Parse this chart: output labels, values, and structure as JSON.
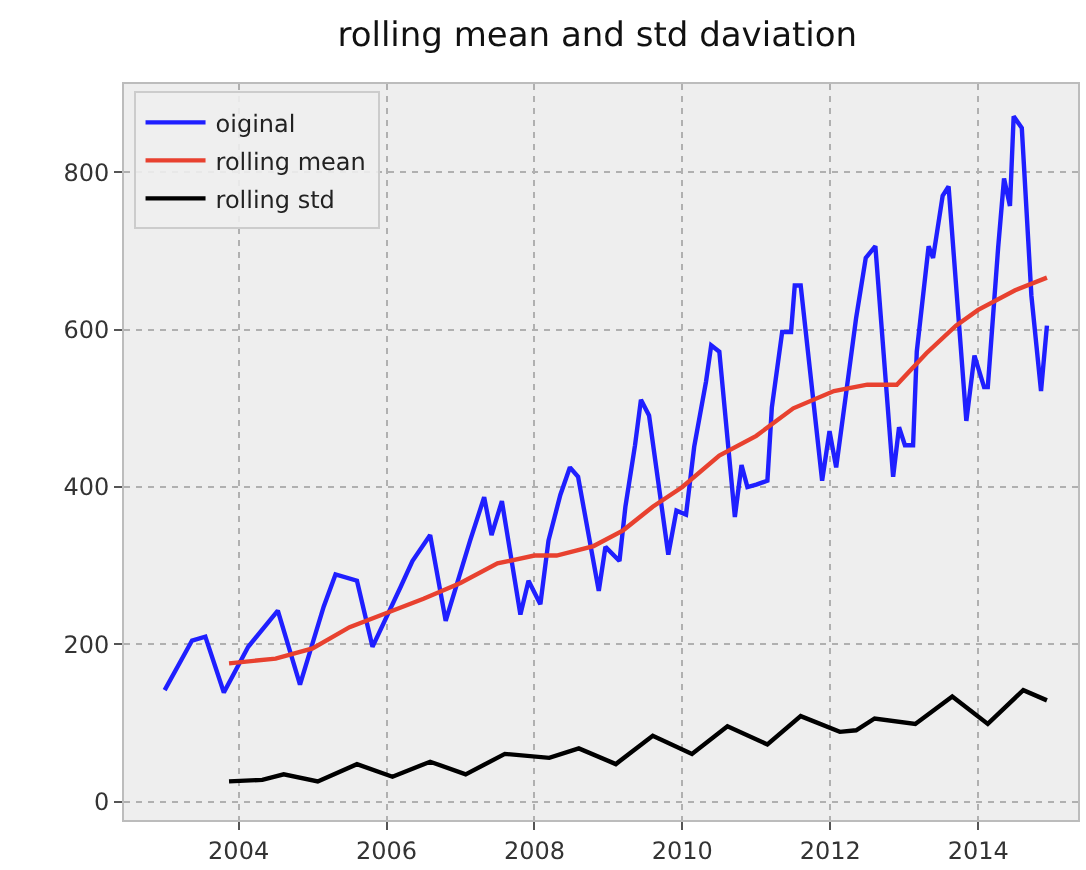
{
  "chart_data": {
    "type": "line",
    "title": "rolling mean and std daviation",
    "xlim": [
      2002.45,
      2015.35
    ],
    "xticks": [
      2004,
      2006,
      2008,
      2010,
      2012,
      2014
    ],
    "ylim": [
      -23,
      912
    ],
    "yticks": [
      0,
      200,
      400,
      600,
      800
    ],
    "grid": true,
    "legend": "top left",
    "marker": "none",
    "line_style": "solid",
    "series": [
      {
        "name": "oiginal",
        "color": "#1f1fff",
        "x": [
          2003.0,
          2003.37,
          2003.55,
          2003.8,
          2004.13,
          2004.53,
          2004.83,
          2005.15,
          2005.31,
          2005.6,
          2005.81,
          2006.19,
          2006.35,
          2006.59,
          2006.8,
          2007.13,
          2007.32,
          2007.42,
          2007.56,
          2007.81,
          2007.92,
          2008.08,
          2008.19,
          2008.35,
          2008.48,
          2008.59,
          2008.87,
          2008.96,
          2009.15,
          2009.23,
          2009.36,
          2009.44,
          2009.55,
          2009.81,
          2009.92,
          2010.05,
          2010.16,
          2010.32,
          2010.39,
          2010.5,
          2010.71,
          2010.8,
          2010.88,
          2011.0,
          2011.15,
          2011.21,
          2011.35,
          2011.47,
          2011.52,
          2011.6,
          2011.89,
          2011.99,
          2012.08,
          2012.21,
          2012.35,
          2012.48,
          2012.61,
          2012.85,
          2012.93,
          2013.01,
          2013.12,
          2013.17,
          2013.33,
          2013.39,
          2013.52,
          2013.6,
          2013.84,
          2013.95,
          2014.08,
          2014.13,
          2014.27,
          2014.35,
          2014.43,
          2014.48,
          2014.59,
          2014.72,
          2014.85,
          2014.93
        ],
        "values": [
          142,
          205,
          210,
          139,
          197,
          243,
          149,
          248,
          289,
          281,
          197,
          273,
          306,
          339,
          230,
          332,
          387,
          339,
          382,
          238,
          281,
          251,
          332,
          390,
          425,
          413,
          268,
          324,
          306,
          375,
          453,
          511,
          491,
          314,
          370,
          365,
          451,
          534,
          580,
          572,
          362,
          428,
          400,
          403,
          408,
          501,
          597,
          597,
          656,
          656,
          408,
          471,
          425,
          516,
          615,
          691,
          706,
          413,
          476,
          453,
          453,
          572,
          706,
          691,
          770,
          782,
          484,
          567,
          527,
          527,
          704,
          792,
          757,
          871,
          856,
          643,
          522,
          605
        ]
      },
      {
        "name": "rolling mean",
        "color": "#e8412f",
        "x": [
          2003.87,
          2004.5,
          2005.0,
          2005.5,
          2006.0,
          2006.5,
          2007.0,
          2007.5,
          2008.0,
          2008.3,
          2008.8,
          2009.2,
          2009.6,
          2010.0,
          2010.5,
          2011.0,
          2011.5,
          2012.05,
          2012.5,
          2012.9,
          2013.3,
          2013.7,
          2014.0,
          2014.5,
          2014.93
        ],
        "values": [
          176,
          182,
          195,
          222,
          240,
          258,
          278,
          303,
          313,
          313,
          325,
          345,
          375,
          400,
          440,
          465,
          500,
          522,
          530,
          530,
          570,
          605,
          625,
          650,
          666
        ]
      },
      {
        "name": "rolling std",
        "color": "#000000",
        "x": [
          2003.87,
          2004.32,
          2004.61,
          2005.07,
          2005.6,
          2006.08,
          2006.59,
          2007.07,
          2007.6,
          2008.2,
          2008.6,
          2009.1,
          2009.6,
          2010.13,
          2010.61,
          2011.15,
          2011.6,
          2012.13,
          2012.35,
          2012.6,
          2013.15,
          2013.65,
          2014.13,
          2014.61,
          2014.93
        ],
        "values": [
          26,
          28,
          35,
          26,
          48,
          32,
          51,
          35,
          61,
          56,
          68,
          48,
          84,
          61,
          96,
          73,
          109,
          89,
          91,
          106,
          99,
          134,
          99,
          142,
          129
        ]
      }
    ]
  }
}
